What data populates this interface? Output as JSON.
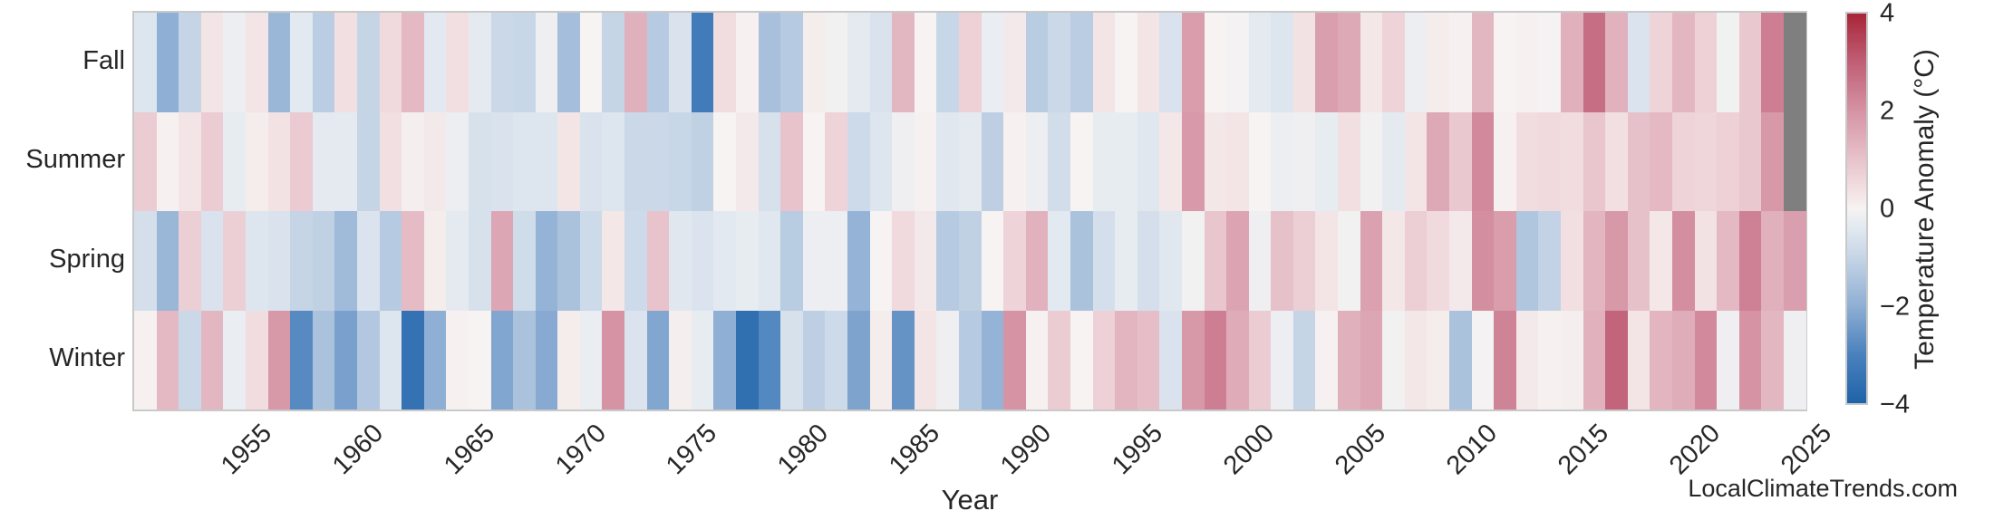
{
  "page": {
    "background": "#ffffff"
  },
  "watermark": "LocalClimateTrends.com",
  "chart_data": {
    "type": "heatmap",
    "title": "",
    "xlabel": "Year",
    "ylabel": "",
    "rows": [
      "Fall",
      "Summer",
      "Spring",
      "Winter"
    ],
    "years": [
      1950,
      1951,
      1952,
      1953,
      1954,
      1955,
      1956,
      1957,
      1958,
      1959,
      1960,
      1961,
      1962,
      1963,
      1964,
      1965,
      1966,
      1967,
      1968,
      1969,
      1970,
      1971,
      1972,
      1973,
      1974,
      1975,
      1976,
      1977,
      1978,
      1979,
      1980,
      1981,
      1982,
      1983,
      1984,
      1985,
      1986,
      1987,
      1988,
      1989,
      1990,
      1991,
      1992,
      1993,
      1994,
      1995,
      1996,
      1997,
      1998,
      1999,
      2000,
      2001,
      2002,
      2003,
      2004,
      2005,
      2006,
      2007,
      2008,
      2009,
      2010,
      2011,
      2012,
      2013,
      2014,
      2015,
      2016,
      2017,
      2018,
      2019,
      2020,
      2021,
      2022,
      2023,
      2024
    ],
    "x_ticks": [
      "1955",
      "1960",
      "1965",
      "1970",
      "1975",
      "1980",
      "1985",
      "1990",
      "1995",
      "2000",
      "2005",
      "2010",
      "2015",
      "2020",
      "2025"
    ],
    "x_tick_years": [
      1955,
      1960,
      1965,
      1970,
      1975,
      1980,
      1985,
      1990,
      1995,
      2000,
      2005,
      2010,
      2015,
      2020,
      2025
    ],
    "series": [
      {
        "name": "Fall",
        "values": [
          -0.5,
          -2,
          -1,
          0.3,
          -0.2,
          0.3,
          -1.8,
          -0.4,
          -1.2,
          0.4,
          -1,
          0.5,
          1.2,
          -0.4,
          0.4,
          -0.35,
          -0.9,
          -0.95,
          -0.15,
          -1.6,
          0,
          -1,
          1.4,
          -1.3,
          -0.6,
          -3.2,
          0.45,
          0.05,
          -1.55,
          -1.3,
          0.15,
          -0.1,
          -0.35,
          -0.6,
          1.25,
          0,
          -0.95,
          0.7,
          -0.25,
          0.2,
          -1.25,
          -0.9,
          -1.2,
          0.3,
          0,
          0.3,
          -0.6,
          1.8,
          0,
          -0.05,
          -0.35,
          -0.5,
          0.35,
          1.75,
          1.55,
          0.25,
          0.65,
          -0.2,
          0.15,
          0.05,
          1.25,
          0,
          0.05,
          -0.05,
          1.4,
          2.7,
          1.35,
          -0.55,
          0.65,
          1.25,
          0.7,
          -0.1,
          0.9,
          2.4,
          null
        ]
      },
      {
        "name": "Summer",
        "values": [
          0.8,
          0.05,
          0.3,
          0.8,
          -0.3,
          0.15,
          0.35,
          0.85,
          -0.35,
          -0.35,
          -1,
          0.4,
          0.1,
          0.2,
          -0.2,
          -0.65,
          -0.6,
          -0.5,
          -0.5,
          0.3,
          -0.6,
          -0.5,
          -0.9,
          -0.9,
          -0.95,
          -1.1,
          0,
          0.2,
          -0.65,
          1,
          0,
          0.65,
          -0.85,
          -0.5,
          -0.15,
          0.05,
          -0.45,
          -0.35,
          -1.15,
          0.05,
          -0.2,
          -0.75,
          0,
          -0.3,
          -0.3,
          -0.45,
          0.25,
          1.85,
          0.25,
          0.3,
          0,
          -0.2,
          -0.15,
          -0.3,
          0.4,
          -0.1,
          -0.35,
          0.3,
          1.55,
          0.9,
          2.2,
          0.05,
          0.45,
          0.5,
          0.45,
          0.95,
          0.4,
          1.05,
          1.2,
          0.65,
          0.6,
          0.7,
          0.9,
          1.9,
          null
        ]
      },
      {
        "name": "Spring",
        "values": [
          -0.7,
          -1.8,
          0.75,
          -0.6,
          0.75,
          -0.5,
          -0.6,
          -1,
          -1.1,
          -1.7,
          -0.55,
          -1.3,
          1.15,
          0.15,
          -0.35,
          -0.65,
          1.6,
          -0.8,
          -1.9,
          -1.5,
          -0.85,
          0.25,
          -0.85,
          1,
          -0.45,
          -0.55,
          -0.4,
          -0.3,
          -0.45,
          -1.25,
          -0.2,
          -0.2,
          -1.9,
          0,
          0.5,
          0.2,
          -1.3,
          -1.1,
          0,
          0.65,
          1.35,
          -0.4,
          -1.5,
          -0.7,
          -0.3,
          -0.7,
          -0.45,
          -0.1,
          0.95,
          1.65,
          -0.15,
          1.05,
          0.75,
          0.3,
          -0.1,
          1.7,
          0.25,
          0.75,
          0.5,
          0.2,
          2.1,
          1.8,
          -1.4,
          -1.05,
          0.4,
          1.3,
          1.9,
          1.05,
          0.25,
          2.1,
          0.35,
          1.2,
          2.35,
          1.4,
          1.75
        ]
      },
      {
        "name": "Winter",
        "values": [
          0.05,
          1.2,
          -0.9,
          1.25,
          -0.25,
          0.45,
          1.9,
          -2.8,
          -1.5,
          -2.3,
          -1.35,
          -0.5,
          -3.5,
          -2,
          0.05,
          0,
          -2.2,
          -1.5,
          -2.1,
          0.15,
          -0.25,
          2,
          -0.55,
          -2.2,
          0.1,
          -0.3,
          -2,
          -3.6,
          -2.85,
          -0.65,
          -1.15,
          -0.85,
          -2.25,
          0.15,
          -2.6,
          0.3,
          -0.15,
          -1.3,
          -1.9,
          2,
          0.05,
          0.8,
          0,
          0.7,
          1.3,
          1.1,
          -0.6,
          1.9,
          2.4,
          1.5,
          0.8,
          -0.2,
          -1,
          0.05,
          1.4,
          1.6,
          -0.1,
          0.25,
          0.15,
          -1.5,
          -0.05,
          2.3,
          0.2,
          0.05,
          0.1,
          1.35,
          2.9,
          0.3,
          1.3,
          1.45,
          2.2,
          -0.15,
          2,
          1.25,
          -0.15
        ]
      }
    ],
    "colorbar": {
      "label": "Temperature Anomaly (°C)",
      "tick_labels": [
        "4",
        "2",
        "0",
        "−2",
        "−4"
      ],
      "tick_values": [
        4,
        2,
        0,
        -2,
        -4
      ],
      "vmin": -4,
      "vmax": 4
    },
    "missing_value_color": "#7f7f7f",
    "colormap_stops": [
      [
        -4.0,
        "#1f63a8"
      ],
      [
        -3.0,
        "#4a81bd"
      ],
      [
        -2.0,
        "#8fafd4"
      ],
      [
        -1.0,
        "#c6d5e6"
      ],
      [
        -0.4,
        "#e2e9f0"
      ],
      [
        0.0,
        "#f6f3f2"
      ],
      [
        0.4,
        "#f2dfe2"
      ],
      [
        1.0,
        "#e8c3cc"
      ],
      [
        2.0,
        "#d593a4"
      ],
      [
        3.0,
        "#c05f76"
      ],
      [
        4.0,
        "#a82637"
      ]
    ],
    "grid": false,
    "legend_position": "right-colorbar",
    "xlim": [
      1949.5,
      2025.5
    ]
  }
}
